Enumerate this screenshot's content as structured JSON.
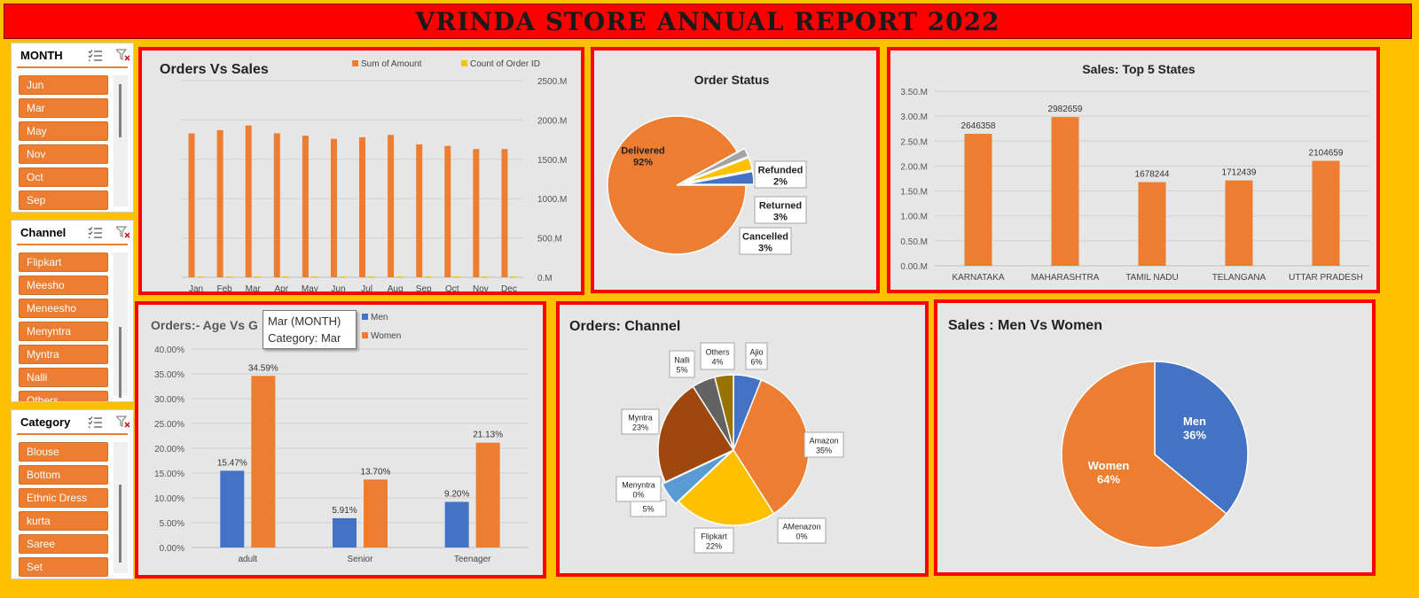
{
  "report_title": "VRINDA STORE ANNUAL REPORT 2022",
  "colors": {
    "orange": "#ed7d31",
    "blue": "#4472c4",
    "gold": "#ffc000",
    "red": "#ff0000",
    "gray": "#a5a5a5",
    "light_blue": "#5b9bd5",
    "brown": "#9e480e",
    "dark_gray": "#636363",
    "olive": "#997300"
  },
  "slicers": [
    {
      "title": "MONTH",
      "items": [
        "Jun",
        "Mar",
        "May",
        "Nov",
        "Oct",
        "Sep"
      ]
    },
    {
      "title": "Channel",
      "items": [
        "Flipkart",
        "Meesho",
        "Meneesho",
        "Menyntra",
        "Myntra",
        "Nalli",
        "Others"
      ]
    },
    {
      "title": "Category",
      "items": [
        "Blouse",
        "Bottom",
        "Ethnic Dress",
        "kurta",
        "Saree",
        "Set"
      ]
    }
  ],
  "tooltip": {
    "line1": "Mar (MONTH)",
    "line2": "Category: Mar"
  },
  "chart_data": [
    {
      "type": "bar",
      "title": "Orders Vs Sales",
      "categories": [
        "Jan",
        "Feb",
        "Mar",
        "Apr",
        "May",
        "Jun",
        "Jul",
        "Aug",
        "Sep",
        "Oct",
        "Nov",
        "Dec"
      ],
      "series": [
        {
          "name": "Sum of Amount",
          "values": [
            1830,
            1870,
            1930,
            1830,
            1800,
            1760,
            1780,
            1810,
            1690,
            1670,
            1630,
            1630
          ],
          "color": "#ed7d31"
        },
        {
          "name": "Count of Order ID",
          "values": [
            12,
            12,
            12,
            12,
            12,
            12,
            12,
            12,
            12,
            12,
            12,
            12
          ],
          "color": "#ffc000"
        }
      ],
      "yticks": [
        "0.M",
        "500.M",
        "1000.M",
        "1500.M",
        "2000.M",
        "2500.M"
      ],
      "ylim": [
        0,
        2500
      ],
      "legend": "top"
    },
    {
      "type": "pie",
      "title": "Order Status",
      "slices": [
        {
          "label": "Delivered",
          "pct": "92%",
          "value": 92,
          "color": "#ed7d31"
        },
        {
          "label": "Refunded",
          "pct": "2%",
          "value": 2,
          "color": "#a5a5a5"
        },
        {
          "label": "Returned",
          "pct": "3%",
          "value": 3,
          "color": "#ffc000"
        },
        {
          "label": "Cancelled",
          "pct": "3%",
          "value": 3,
          "color": "#4472c4"
        }
      ]
    },
    {
      "type": "bar",
      "title": "Sales: Top 5 States",
      "categories": [
        "KARNATAKA",
        "MAHARASHTRA",
        "TAMIL NADU",
        "TELANGANA",
        "UTTAR PRADESH"
      ],
      "values": [
        2646358,
        2982659,
        1678244,
        1712439,
        2104659
      ],
      "labels": [
        "2646358",
        "2982659",
        "1678244",
        "1712439",
        "2104659"
      ],
      "yticks": [
        "0.00.M",
        "0.50.M",
        "1.00.M",
        "1.50.M",
        "2.00.M",
        "2.50.M",
        "3.00.M",
        "3.50.M"
      ],
      "ylim": [
        0,
        3500000
      ],
      "color": "#ed7d31"
    },
    {
      "type": "bar",
      "title": "Orders:- Age Vs G",
      "categories": [
        "adult",
        "Senior",
        "Teenager"
      ],
      "series": [
        {
          "name": "Men",
          "values": [
            15.47,
            5.91,
            9.2
          ],
          "labels": [
            "15.47%",
            "5.91%",
            "9.20%"
          ],
          "color": "#4472c4"
        },
        {
          "name": "Women",
          "values": [
            34.59,
            13.7,
            21.13
          ],
          "labels": [
            "34.59%",
            "13.70%",
            "21.13%"
          ],
          "color": "#ed7d31"
        }
      ],
      "yticks": [
        "0.00%",
        "5.00%",
        "10.00%",
        "15.00%",
        "20.00%",
        "25.00%",
        "30.00%",
        "35.00%",
        "40.00%"
      ],
      "ylim": [
        0,
        40
      ],
      "legend": "top-right"
    },
    {
      "type": "pie",
      "title": "Orders: Channel",
      "slices": [
        {
          "label": "Ajio",
          "pct": "6%",
          "value": 6,
          "color": "#4472c4"
        },
        {
          "label": "Amazon",
          "pct": "35%",
          "value": 35,
          "color": "#ed7d31"
        },
        {
          "label": "AMenazon",
          "pct": "0%",
          "value": 0,
          "color": "#a5a5a5"
        },
        {
          "label": "Flipkart",
          "pct": "22%",
          "value": 22,
          "color": "#ffc000"
        },
        {
          "label": "",
          "pct": "5%",
          "value": 5,
          "color": "#5b9bd5"
        },
        {
          "label": "Menyntra",
          "pct": "0%",
          "value": 0,
          "color": "#70ad47"
        },
        {
          "label": "Myntra",
          "pct": "23%",
          "value": 23,
          "color": "#9e480e"
        },
        {
          "label": "Nalli",
          "pct": "5%",
          "value": 5,
          "color": "#636363"
        },
        {
          "label": "Others",
          "pct": "4%",
          "value": 4,
          "color": "#997300"
        }
      ]
    },
    {
      "type": "pie",
      "title": "Sales : Men Vs Women",
      "slices": [
        {
          "label": "Men",
          "pct": "36%",
          "value": 36,
          "color": "#4472c4"
        },
        {
          "label": "Women",
          "pct": "64%",
          "value": 64,
          "color": "#ed7d31"
        }
      ]
    }
  ]
}
